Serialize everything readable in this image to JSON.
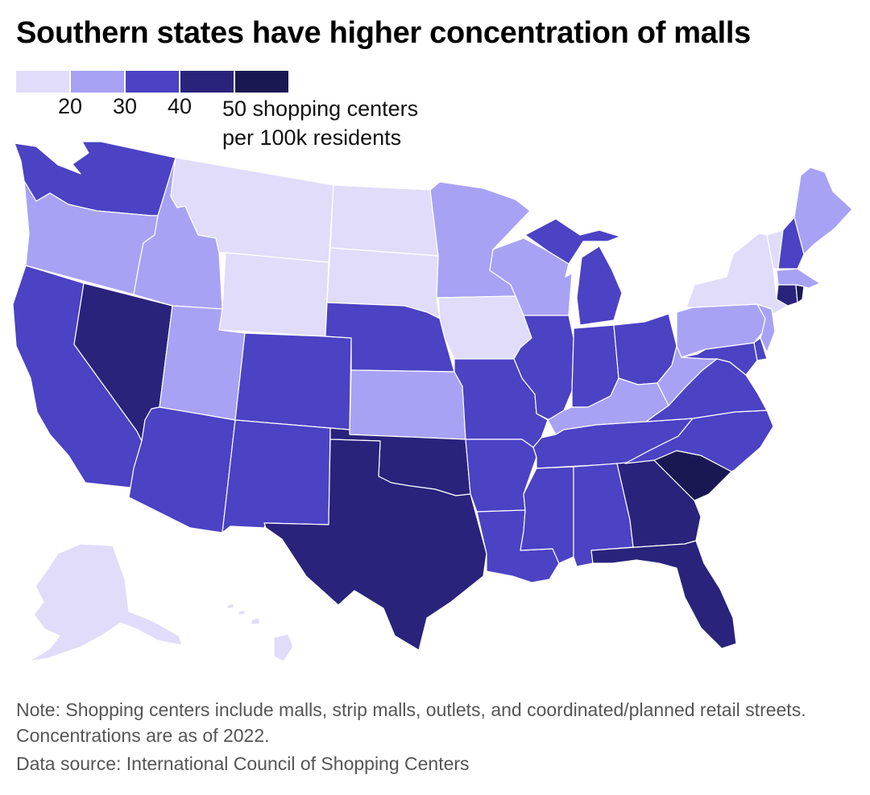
{
  "title": "Southern states have higher concentration of malls",
  "legend": {
    "colors": [
      "#e0dcfa",
      "#a8a2f5",
      "#4b42c4",
      "#29237c",
      "#1a1852"
    ],
    "ticks": [
      "20",
      "30",
      "40"
    ],
    "unit_line1": "50 shopping centers",
    "unit_line2": "per 100k residents"
  },
  "note": "Note: Shopping centers include malls, strip malls, outlets, and coordinated/planned retail streets. Concentrations are as of 2022.",
  "source": "Data source: International Council of Shopping Centers",
  "states": [
    {
      "id": "WA",
      "bin": 2
    },
    {
      "id": "OR",
      "bin": 1
    },
    {
      "id": "CA",
      "bin": 2
    },
    {
      "id": "NV",
      "bin": 3
    },
    {
      "id": "ID",
      "bin": 1
    },
    {
      "id": "MT",
      "bin": 0
    },
    {
      "id": "WY",
      "bin": 0
    },
    {
      "id": "UT",
      "bin": 1
    },
    {
      "id": "AZ",
      "bin": 2
    },
    {
      "id": "CO",
      "bin": 2
    },
    {
      "id": "NM",
      "bin": 2
    },
    {
      "id": "ND",
      "bin": 0
    },
    {
      "id": "SD",
      "bin": 0
    },
    {
      "id": "NE",
      "bin": 2
    },
    {
      "id": "KS",
      "bin": 1
    },
    {
      "id": "OK",
      "bin": 3
    },
    {
      "id": "TX",
      "bin": 3
    },
    {
      "id": "MN",
      "bin": 1
    },
    {
      "id": "IA",
      "bin": 0
    },
    {
      "id": "MO",
      "bin": 2
    },
    {
      "id": "AR",
      "bin": 2
    },
    {
      "id": "LA",
      "bin": 2
    },
    {
      "id": "WI",
      "bin": 1
    },
    {
      "id": "IL",
      "bin": 2
    },
    {
      "id": "MI",
      "bin": 2
    },
    {
      "id": "IN",
      "bin": 2
    },
    {
      "id": "OH",
      "bin": 2
    },
    {
      "id": "KY",
      "bin": 1
    },
    {
      "id": "TN",
      "bin": 2
    },
    {
      "id": "MS",
      "bin": 2
    },
    {
      "id": "AL",
      "bin": 2
    },
    {
      "id": "GA",
      "bin": 3
    },
    {
      "id": "FL",
      "bin": 3
    },
    {
      "id": "SC",
      "bin": 4
    },
    {
      "id": "NC",
      "bin": 2
    },
    {
      "id": "VA",
      "bin": 2
    },
    {
      "id": "WV",
      "bin": 1
    },
    {
      "id": "MD",
      "bin": 2
    },
    {
      "id": "DE",
      "bin": 2
    },
    {
      "id": "PA",
      "bin": 1
    },
    {
      "id": "NJ",
      "bin": 1
    },
    {
      "id": "NY",
      "bin": 0
    },
    {
      "id": "CT",
      "bin": 3
    },
    {
      "id": "RI",
      "bin": 4
    },
    {
      "id": "MA",
      "bin": 1
    },
    {
      "id": "VT",
      "bin": 0
    },
    {
      "id": "NH",
      "bin": 2
    },
    {
      "id": "ME",
      "bin": 1
    },
    {
      "id": "AK",
      "bin": 0
    },
    {
      "id": "HI",
      "bin": 0
    }
  ]
}
